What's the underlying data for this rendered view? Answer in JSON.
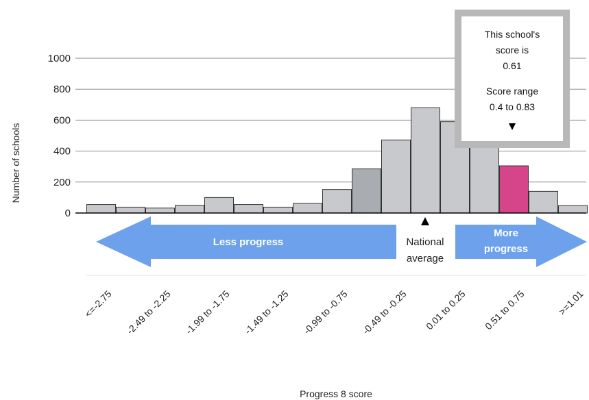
{
  "chart_data": {
    "type": "bar",
    "xlabel": "Progress 8 score",
    "ylabel": "Number of schools",
    "ylim": [
      0,
      1000
    ],
    "yticks": [
      0,
      200,
      400,
      600,
      800,
      1000
    ],
    "grid": true,
    "bins": [
      {
        "label": "<=-2.75",
        "value": 55
      },
      {
        "label": "",
        "value": 38
      },
      {
        "label": "-2.49 to -2.25",
        "value": 32
      },
      {
        "label": "",
        "value": 50
      },
      {
        "label": "-1.99 to -1.75",
        "value": 100
      },
      {
        "label": "",
        "value": 55
      },
      {
        "label": "-1.49 to -1.25",
        "value": 38
      },
      {
        "label": "",
        "value": 62
      },
      {
        "label": "-0.99 to -0.75",
        "value": 152
      },
      {
        "label": "",
        "value": 285
      },
      {
        "label": "-0.49 to -0.25",
        "value": 472
      },
      {
        "label": "",
        "value": 680
      },
      {
        "label": "0.01 to 0.25",
        "value": 590
      },
      {
        "label": "",
        "value": 470
      },
      {
        "label": "0.51 to 0.75",
        "value": 305
      },
      {
        "label": "",
        "value": 140
      },
      {
        "label": ">=1.01",
        "value": 48
      }
    ],
    "highlight_index": 14,
    "darker_index": 9,
    "colors": {
      "bar": "#c8c9cc",
      "bar_dark": "#a9acb0",
      "highlight": "#d6448a",
      "arrow": "#6ea1ec",
      "grid": "#8a8a8a"
    }
  },
  "arrows": {
    "less": "Less progress",
    "more_line1": "More",
    "more_line2": "progress",
    "national_line1": "National",
    "national_line2": "average"
  },
  "tooltip": {
    "line1": "This school's",
    "line2": "score is",
    "line3": "0.61",
    "line4": "Score range",
    "line5": "0.4 to 0.83"
  }
}
